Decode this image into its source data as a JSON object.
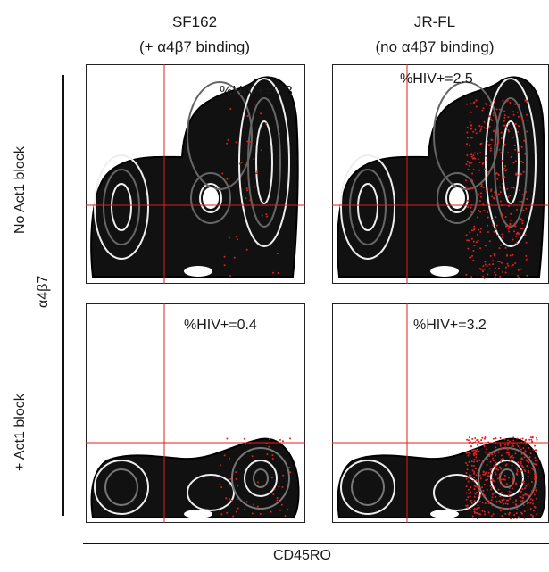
{
  "figure": {
    "columns": [
      {
        "title": "SF162",
        "subtitle": "(+ α4β7 binding)"
      },
      {
        "title": "JR-FL",
        "subtitle": "(no α4β7 binding)"
      }
    ],
    "rows": [
      {
        "label": "No Act1 block"
      },
      {
        "label": "+ Act1 block"
      }
    ],
    "y_axis_label": "α4β7",
    "x_axis_label": "CD45RO"
  },
  "chart_data": {
    "type": "scatter",
    "subtype": "flow-cytometry-contour",
    "xlabel": "CD45RO",
    "ylabel": "α4β7",
    "gate_color": "#e0201c",
    "contour_colors": [
      "#000000",
      "#ffffff"
    ],
    "hiv_dot_color": "#e0201c",
    "panels": [
      {
        "row": "No Act1 block",
        "column": "SF162",
        "annotation": "%HIV+=0.3",
        "hiv_percent": 0.3
      },
      {
        "row": "No Act1 block",
        "column": "JR-FL",
        "annotation": "%HIV+=2.5",
        "hiv_percent": 2.5
      },
      {
        "row": "+ Act1 block",
        "column": "SF162",
        "annotation": "%HIV+=0.4",
        "hiv_percent": 0.4
      },
      {
        "row": "+ Act1 block",
        "column": "JR-FL",
        "annotation": "%HIV+=3.2",
        "hiv_percent": 3.2
      }
    ]
  }
}
